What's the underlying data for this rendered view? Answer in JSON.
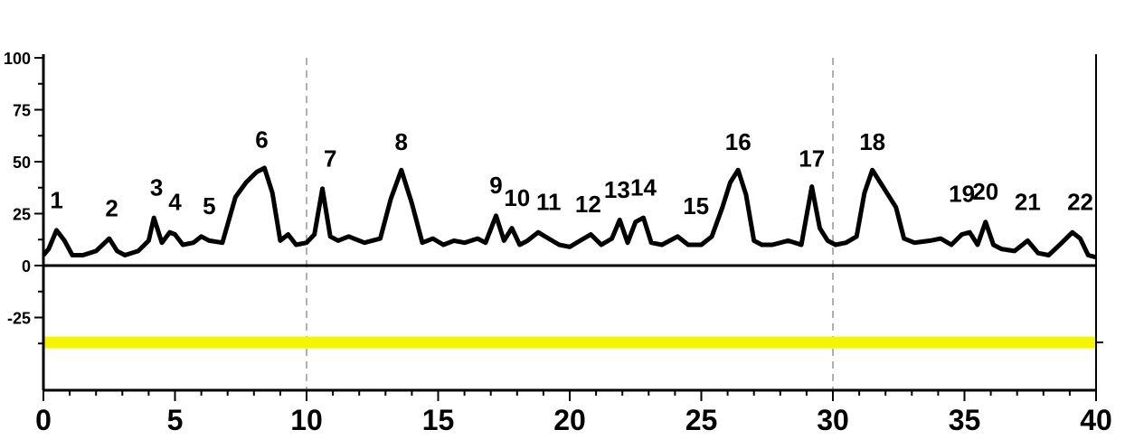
{
  "chart_data": {
    "type": "line",
    "title": "",
    "xlabel": "",
    "ylabel": "",
    "xlim": [
      0,
      40
    ],
    "ylim": [
      -50,
      100
    ],
    "x_ticks": [
      "0",
      "5",
      "10",
      "15",
      "20",
      "25",
      "30",
      "35",
      "40"
    ],
    "y_ticks": [
      "-25",
      "0",
      "25",
      "50",
      "75",
      "100"
    ],
    "y_tick_values": [
      -25,
      0,
      25,
      50,
      75,
      100
    ],
    "vertical_reference_lines_x": [
      10,
      30
    ],
    "horizontal_reference_line_y": 0,
    "highlight_band": {
      "y": -37,
      "color": "#f5f500"
    },
    "series": [
      {
        "color": "#000000",
        "x": [
          0,
          0.2,
          0.5,
          0.8,
          1.1,
          1.5,
          2.0,
          2.5,
          2.8,
          3.1,
          3.6,
          4.0,
          4.2,
          4.5,
          4.8,
          5.0,
          5.3,
          5.7,
          6.0,
          6.3,
          6.8,
          7.3,
          7.7,
          8.1,
          8.4,
          8.7,
          9.0,
          9.3,
          9.6,
          10.0,
          10.3,
          10.6,
          10.9,
          11.2,
          11.6,
          12.2,
          12.8,
          13.2,
          13.6,
          14.0,
          14.4,
          14.8,
          15.2,
          15.6,
          16.0,
          16.5,
          16.8,
          17.2,
          17.5,
          17.8,
          18.1,
          18.4,
          18.8,
          19.2,
          19.6,
          20.0,
          20.4,
          20.8,
          21.2,
          21.6,
          21.9,
          22.2,
          22.5,
          22.8,
          23.1,
          23.5,
          24.1,
          24.5,
          25.0,
          25.4,
          25.8,
          26.1,
          26.4,
          26.7,
          27.0,
          27.3,
          27.7,
          28.3,
          28.8,
          29.2,
          29.5,
          29.8,
          30.1,
          30.5,
          30.9,
          31.2,
          31.5,
          31.8,
          32.1,
          32.4,
          32.7,
          33.1,
          33.7,
          34.1,
          34.5,
          34.9,
          35.2,
          35.5,
          35.8,
          36.1,
          36.4,
          36.9,
          37.4,
          37.8,
          38.2,
          38.7,
          39.1,
          39.4,
          39.7,
          40.0
        ],
        "y": [
          5,
          8,
          17,
          12,
          5,
          5,
          7,
          13,
          7,
          5,
          7,
          12,
          23,
          11,
          16,
          15,
          10,
          11,
          14,
          12,
          11,
          33,
          40,
          45,
          47,
          35,
          12,
          15,
          10,
          11,
          15,
          37,
          14,
          12,
          14,
          11,
          13,
          32,
          46,
          30,
          11,
          13,
          10,
          12,
          11,
          13,
          11,
          24,
          12,
          18,
          10,
          12,
          16,
          13,
          10,
          9,
          12,
          15,
          10,
          13,
          22,
          11,
          21,
          23,
          11,
          10,
          14,
          10,
          10,
          14,
          28,
          40,
          46,
          34,
          12,
          10,
          10,
          12,
          10,
          38,
          18,
          12,
          10,
          11,
          14,
          35,
          46,
          40,
          34,
          28,
          13,
          11,
          12,
          13,
          10,
          15,
          16,
          10,
          21,
          10,
          8,
          7,
          12,
          6,
          5,
          11,
          16,
          13,
          5,
          4
        ]
      }
    ],
    "annotations": [
      {
        "text": "1",
        "x": 0.5,
        "y": 19
      },
      {
        "text": "2",
        "x": 2.6,
        "y": 15
      },
      {
        "text": "3",
        "x": 4.3,
        "y": 25
      },
      {
        "text": "4",
        "x": 5.0,
        "y": 18
      },
      {
        "text": "5",
        "x": 6.3,
        "y": 16
      },
      {
        "text": "6",
        "x": 8.3,
        "y": 48
      },
      {
        "text": "7",
        "x": 10.9,
        "y": 39
      },
      {
        "text": "8",
        "x": 13.6,
        "y": 47
      },
      {
        "text": "9",
        "x": 17.2,
        "y": 26
      },
      {
        "text": "10",
        "x": 18.0,
        "y": 20
      },
      {
        "text": "11",
        "x": 19.2,
        "y": 18
      },
      {
        "text": "12",
        "x": 20.7,
        "y": 17
      },
      {
        "text": "13",
        "x": 21.8,
        "y": 24
      },
      {
        "text": "14",
        "x": 22.8,
        "y": 25
      },
      {
        "text": "15",
        "x": 24.8,
        "y": 16
      },
      {
        "text": "16",
        "x": 26.4,
        "y": 47
      },
      {
        "text": "17",
        "x": 29.2,
        "y": 39
      },
      {
        "text": "18",
        "x": 31.5,
        "y": 47
      },
      {
        "text": "19",
        "x": 34.9,
        "y": 22
      },
      {
        "text": "20",
        "x": 35.8,
        "y": 23
      },
      {
        "text": "21",
        "x": 37.4,
        "y": 18
      },
      {
        "text": "22",
        "x": 39.4,
        "y": 18
      }
    ]
  }
}
